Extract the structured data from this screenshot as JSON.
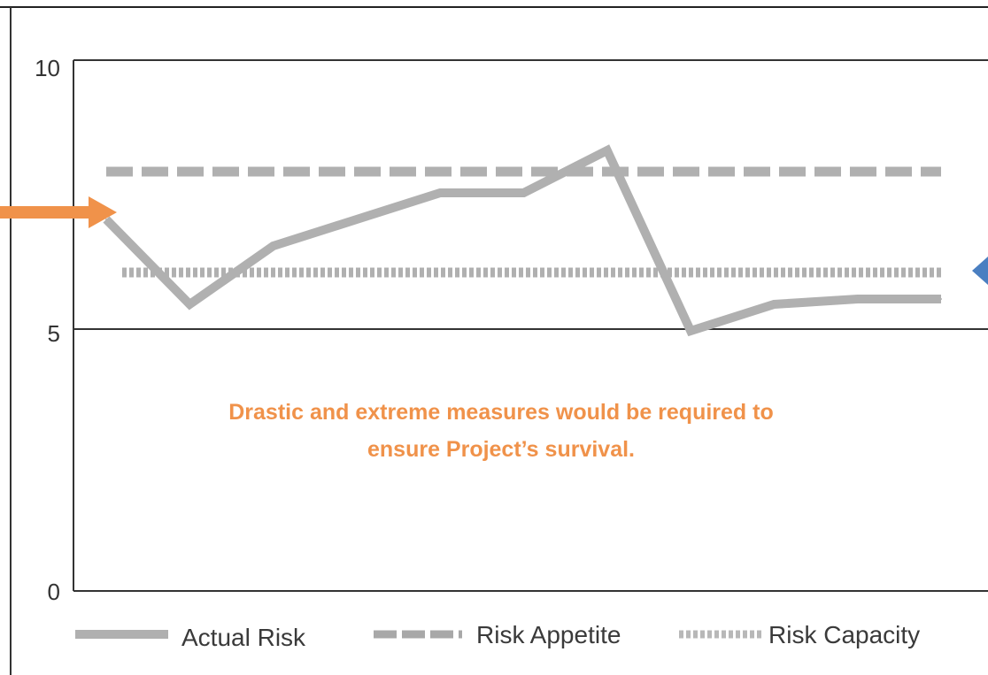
{
  "chart_data": {
    "type": "line",
    "title": "",
    "xlabel": "",
    "ylabel": "",
    "ylim": [
      0,
      10
    ],
    "yticks": [
      "0",
      "5",
      "10"
    ],
    "grid": "horizontal lines at 5 and 10",
    "x": [
      0,
      1,
      2,
      3,
      4,
      5,
      6,
      7,
      8,
      9,
      10
    ],
    "series": [
      {
        "name": "Actual Risk",
        "style": "solid",
        "color": "#b0b0b0",
        "values": [
          7.0,
          5.4,
          6.5,
          7.0,
          7.5,
          7.5,
          8.3,
          4.9,
          5.4,
          5.5,
          5.5
        ]
      },
      {
        "name": "Risk Appetite",
        "style": "dashed",
        "color": "#b0b0b0",
        "values": [
          7.9,
          7.9,
          7.9,
          7.9,
          7.9,
          7.9,
          7.9,
          7.9,
          7.9,
          7.9,
          7.9
        ]
      },
      {
        "name": "Risk Capacity",
        "style": "dotted",
        "color": "#b0b0b0",
        "values": [
          6.0,
          6.0,
          6.0,
          6.0,
          6.0,
          6.0,
          6.0,
          6.0,
          6.0,
          6.0,
          6.0
        ]
      }
    ],
    "annotation": {
      "lines": [
        "Drastic and extreme measures would be required to",
        "ensure Project’s survival."
      ],
      "color": "#f0924a"
    },
    "legend_placement": "bottom"
  },
  "pointers": {
    "left_arrow_color": "#f0924a",
    "right_arrow_color": "#4a7fc1"
  }
}
